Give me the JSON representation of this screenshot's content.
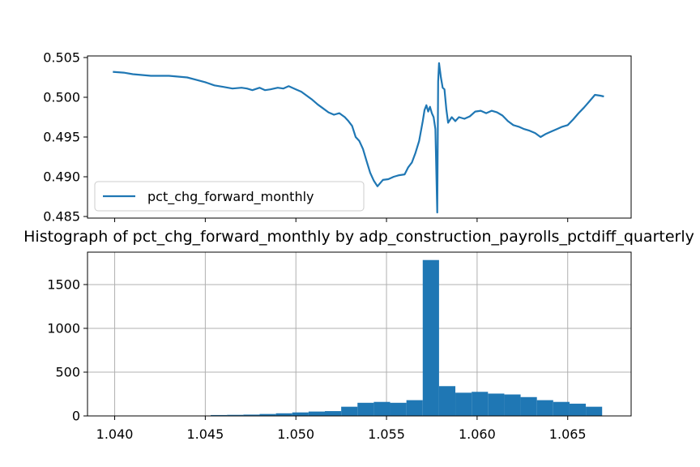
{
  "chart_data": [
    {
      "type": "line",
      "title": "",
      "xlabel": "",
      "ylabel": "",
      "xlim": [
        1.0385,
        1.0685
      ],
      "ylim": [
        0.4848,
        0.5052
      ],
      "yticks": [
        "0.485",
        "0.490",
        "0.495",
        "0.500",
        "0.505"
      ],
      "ytick_values": [
        0.485,
        0.49,
        0.495,
        0.5,
        0.505
      ],
      "xtick_values": [
        1.04,
        1.045,
        1.05,
        1.055,
        1.06,
        1.065
      ],
      "grid": false,
      "legend_position": "lower-left",
      "series": [
        {
          "name": "pct_chg_forward_monthly",
          "color": "#1f77b4",
          "points": [
            [
              1.0399,
              0.5032
            ],
            [
              1.0405,
              0.5031
            ],
            [
              1.041,
              0.5029
            ],
            [
              1.0415,
              0.5028
            ],
            [
              1.042,
              0.5027
            ],
            [
              1.0425,
              0.5027
            ],
            [
              1.043,
              0.5027
            ],
            [
              1.0435,
              0.5026
            ],
            [
              1.044,
              0.5025
            ],
            [
              1.0445,
              0.5022
            ],
            [
              1.045,
              0.5019
            ],
            [
              1.0455,
              0.5015
            ],
            [
              1.046,
              0.5013
            ],
            [
              1.0465,
              0.5011
            ],
            [
              1.047,
              0.5012
            ],
            [
              1.0473,
              0.5011
            ],
            [
              1.0476,
              0.5009
            ],
            [
              1.048,
              0.5012
            ],
            [
              1.0483,
              0.5009
            ],
            [
              1.0486,
              0.501
            ],
            [
              1.049,
              0.5012
            ],
            [
              1.0493,
              0.5011
            ],
            [
              1.0496,
              0.5014
            ],
            [
              1.05,
              0.501
            ],
            [
              1.0503,
              0.5007
            ],
            [
              1.0506,
              0.5002
            ],
            [
              1.0509,
              0.4997
            ],
            [
              1.0512,
              0.4991
            ],
            [
              1.0515,
              0.4986
            ],
            [
              1.0518,
              0.4981
            ],
            [
              1.0521,
              0.4978
            ],
            [
              1.0524,
              0.498
            ],
            [
              1.0527,
              0.4975
            ],
            [
              1.0529,
              0.497
            ],
            [
              1.0531,
              0.4964
            ],
            [
              1.0533,
              0.495
            ],
            [
              1.0535,
              0.4945
            ],
            [
              1.0537,
              0.4935
            ],
            [
              1.0539,
              0.492
            ],
            [
              1.0541,
              0.4905
            ],
            [
              1.0543,
              0.4895
            ],
            [
              1.0545,
              0.4888
            ],
            [
              1.0548,
              0.4896
            ],
            [
              1.0551,
              0.4897
            ],
            [
              1.0554,
              0.49
            ],
            [
              1.0557,
              0.4902
            ],
            [
              1.056,
              0.4903
            ],
            [
              1.0562,
              0.4912
            ],
            [
              1.0564,
              0.4918
            ],
            [
              1.0566,
              0.493
            ],
            [
              1.0568,
              0.4945
            ],
            [
              1.057,
              0.497
            ],
            [
              1.0571,
              0.4984
            ],
            [
              1.0572,
              0.499
            ],
            [
              1.0573,
              0.4982
            ],
            [
              1.0574,
              0.4988
            ],
            [
              1.0575,
              0.498
            ],
            [
              1.0576,
              0.4975
            ],
            [
              1.0577,
              0.496
            ],
            [
              1.0578,
              0.4855
            ],
            [
              1.05785,
              0.502
            ],
            [
              1.0579,
              0.5043
            ],
            [
              1.058,
              0.5025
            ],
            [
              1.0581,
              0.5012
            ],
            [
              1.0582,
              0.501
            ],
            [
              1.0583,
              0.4985
            ],
            [
              1.0584,
              0.4968
            ],
            [
              1.0586,
              0.4975
            ],
            [
              1.0588,
              0.497
            ],
            [
              1.059,
              0.4975
            ],
            [
              1.0593,
              0.4973
            ],
            [
              1.0596,
              0.4976
            ],
            [
              1.0599,
              0.4982
            ],
            [
              1.0602,
              0.4983
            ],
            [
              1.0605,
              0.498
            ],
            [
              1.0608,
              0.4983
            ],
            [
              1.0611,
              0.4981
            ],
            [
              1.0614,
              0.4977
            ],
            [
              1.0617,
              0.497
            ],
            [
              1.062,
              0.4965
            ],
            [
              1.0623,
              0.4963
            ],
            [
              1.0626,
              0.496
            ],
            [
              1.0629,
              0.4958
            ],
            [
              1.0632,
              0.4955
            ],
            [
              1.0635,
              0.495
            ],
            [
              1.0638,
              0.4954
            ],
            [
              1.0641,
              0.4957
            ],
            [
              1.0644,
              0.496
            ],
            [
              1.0647,
              0.4963
            ],
            [
              1.065,
              0.4965
            ],
            [
              1.0653,
              0.4972
            ],
            [
              1.0656,
              0.498
            ],
            [
              1.0659,
              0.4987
            ],
            [
              1.0662,
              0.4995
            ],
            [
              1.0665,
              0.5003
            ],
            [
              1.0668,
              0.5002
            ],
            [
              1.067,
              0.5001
            ]
          ]
        }
      ]
    },
    {
      "type": "bar",
      "title": "Histograph of pct_chg_forward_monthly by adp_construction_payrolls_pctdiff_quarterly",
      "xlabel": "",
      "ylabel": "",
      "xlim": [
        1.0385,
        1.0685
      ],
      "ylim": [
        0,
        1870
      ],
      "xticks": [
        "1.040",
        "1.045",
        "1.050",
        "1.055",
        "1.060",
        "1.065"
      ],
      "xtick_values": [
        1.04,
        1.045,
        1.05,
        1.055,
        1.06,
        1.065
      ],
      "yticks": [
        "0",
        "500",
        "1000",
        "1500"
      ],
      "ytick_values": [
        0,
        500,
        1000,
        1500
      ],
      "grid": true,
      "color": "#1f77b4",
      "bin_edges": [
        1.0399,
        1.0408,
        1.0417,
        1.0426,
        1.0435,
        1.0444,
        1.0453,
        1.0462,
        1.0471,
        1.048,
        1.0489,
        1.0498,
        1.0507,
        1.0516,
        1.0525,
        1.0534,
        1.0543,
        1.0552,
        1.0561,
        1.057,
        1.0579,
        1.0588,
        1.0597,
        1.0606,
        1.0615,
        1.0624,
        1.0633,
        1.0642,
        1.0651,
        1.066,
        1.0669
      ],
      "values": [
        1,
        1,
        1,
        1,
        2,
        3,
        10,
        12,
        15,
        22,
        30,
        40,
        50,
        55,
        105,
        150,
        160,
        150,
        180,
        1780,
        340,
        265,
        275,
        255,
        245,
        215,
        180,
        160,
        140,
        105
      ]
    }
  ]
}
